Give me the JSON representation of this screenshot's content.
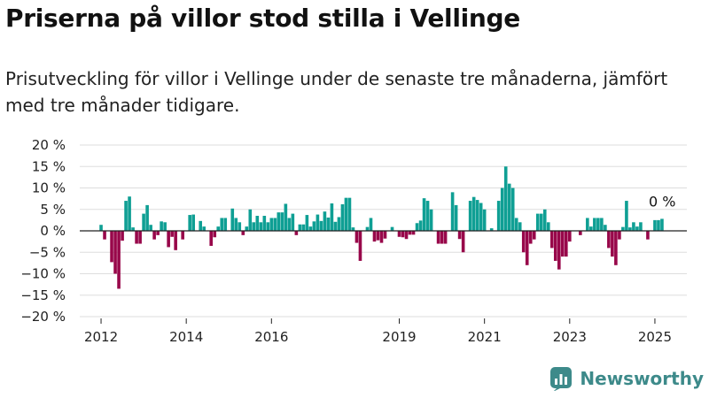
{
  "title": "Priserna på villor stod stilla i Vellinge",
  "subtitle": "Prisutveckling för villor i Vellinge under de senaste tre månaderna, jämfört med tre månader tidigare.",
  "brand": "Newsworthy",
  "colors": {
    "positive": "#0f9f94",
    "negative": "#98074a",
    "zero_line": "#222222",
    "grid": "#dddddd",
    "brand": "#3d8a8a"
  },
  "chart_data": {
    "type": "bar",
    "ylim": [
      -20,
      20
    ],
    "y_ticks": [
      20,
      15,
      10,
      5,
      0,
      -5,
      -10,
      -15,
      -20
    ],
    "y_tick_labels": [
      "20 %",
      "15 %",
      "10 %",
      "5 %",
      "0 %",
      "−5 %",
      "−10 %",
      "−15 %",
      "−20 %"
    ],
    "x_ticks": [
      2012,
      2014,
      2016,
      2019,
      2021,
      2023,
      2025
    ],
    "x_range": [
      2011.5,
      2025.75
    ],
    "annotation": "0 %",
    "start_month": "2012-01",
    "values": [
      1.4,
      -2,
      0,
      -7.3,
      -10,
      -13.5,
      -2.3,
      7,
      8,
      0.8,
      -3,
      -3,
      4,
      6,
      1.4,
      -2,
      -1,
      2.2,
      2,
      -3.8,
      -1.4,
      -4.5,
      0,
      -2,
      0,
      3.7,
      3.8,
      0,
      2.3,
      1,
      0,
      -3.5,
      -1.5,
      1,
      3,
      3,
      0,
      5.2,
      3,
      2,
      -1,
      1,
      5,
      2,
      3.5,
      2,
      3.5,
      2,
      3,
      3,
      4.3,
      4.3,
      6.3,
      3,
      4,
      -1,
      1.5,
      1.5,
      3.7,
      1,
      2.2,
      3.8,
      2.3,
      4.5,
      3.1,
      6.4,
      2.1,
      3.2,
      6.2,
      7.7,
      7.7,
      0.8,
      -2.8,
      -7,
      0,
      0.9,
      3,
      -2.5,
      -2.2,
      -2.8,
      -1.8,
      0,
      0.9,
      0,
      -1.4,
      -1.5,
      -1.9,
      -0.9,
      -0.9,
      1.8,
      2.4,
      7.6,
      7,
      5,
      0,
      -3,
      -3,
      -3,
      0,
      9,
      6,
      -1.9,
      -5,
      0,
      7,
      7.9,
      7.2,
      6.5,
      5,
      0,
      0.6,
      0,
      7,
      10,
      15,
      11,
      10,
      3,
      2,
      -5,
      -8,
      -3,
      -2,
      4,
      4,
      5,
      2,
      -4,
      -7,
      -9,
      -6,
      -6,
      -2.5,
      0,
      0,
      -1,
      0,
      3,
      1,
      3,
      3,
      3,
      1.4,
      -4,
      -6,
      -8,
      -2,
      0.9,
      7,
      0.8,
      2,
      1,
      2,
      0,
      -2,
      0,
      2.5,
      2.5,
      2.8
    ]
  }
}
